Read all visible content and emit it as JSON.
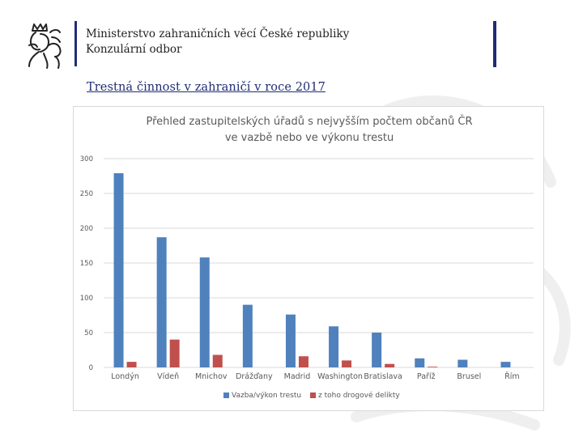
{
  "header": {
    "ministry": "Ministerstvo zahraničních věcí České republiky",
    "department": "Konzulární odbor"
  },
  "slide_title": "Trestná činnost v zahraničí v roce 2017",
  "icons": {
    "logo": "czech-lion-icon",
    "watermark": "czech-lion-watermark-icon"
  },
  "colors": {
    "brand_blue": "#1f2d74",
    "series1": "#4f81bd",
    "series2": "#c0504d"
  },
  "chart_data": {
    "type": "bar",
    "title_line1": "Přehled zastupitelských úřadů s nejvyšším počtem občanů ČR",
    "title_line2": "ve vazbě nebo ve výkonu trestu",
    "categories": [
      "Londýn",
      "Vídeň",
      "Mnichov",
      "Drážďany",
      "Madrid",
      "Washington",
      "Bratislava",
      "Paříž",
      "Brusel",
      "Řím"
    ],
    "series": [
      {
        "name": "Vazba/výkon trestu",
        "values": [
          279,
          187,
          158,
          90,
          76,
          59,
          50,
          13,
          11,
          8
        ],
        "color": "#4f81bd"
      },
      {
        "name": "z toho drogové delikty",
        "values": [
          8,
          40,
          18,
          0,
          16,
          10,
          5,
          1,
          0,
          0
        ],
        "color": "#c0504d"
      }
    ],
    "ylim": [
      0,
      300
    ],
    "yticks": [
      "0",
      "50",
      "100",
      "150",
      "200",
      "250",
      "300"
    ],
    "grid": true,
    "legend": "bottom"
  }
}
